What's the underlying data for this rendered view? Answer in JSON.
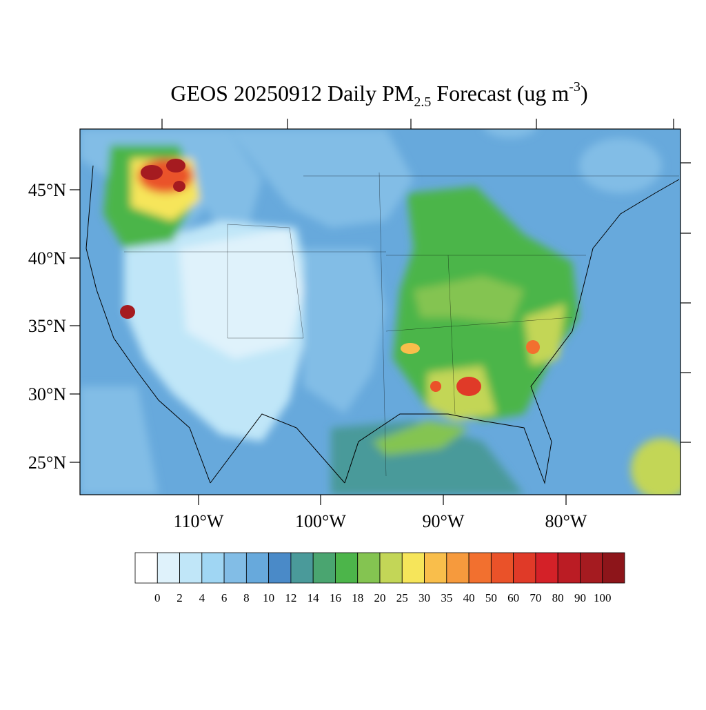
{
  "title": {
    "main": "GEOS 20250912 Daily PM",
    "subscript": "2.5",
    "middle": " Forecast (ug m",
    "superscript": "-3",
    "end": ")"
  },
  "latitude_labels": [
    "45°N",
    "40°N",
    "35°N",
    "30°N",
    "25°N"
  ],
  "longitude_labels": [
    "110°W",
    "100°W",
    "90°W",
    "80°W"
  ],
  "colorbar": {
    "colors": [
      "#ffffff",
      "#dff2fb",
      "#c0e6f8",
      "#a0d6f3",
      "#82bde6",
      "#67a9dc",
      "#4a8ac8",
      "#4a9a9a",
      "#4aa570",
      "#4cb54a",
      "#84c451",
      "#c3d657",
      "#f6e55a",
      "#f9be4b",
      "#f69a3d",
      "#f2702f",
      "#ea5229",
      "#e03a28",
      "#d42128",
      "#bb1c24",
      "#a51b20",
      "#8d151a"
    ],
    "labels": [
      "0",
      "2",
      "4",
      "6",
      "8",
      "10",
      "12",
      "14",
      "16",
      "18",
      "20",
      "25",
      "30",
      "35",
      "40",
      "50",
      "60",
      "70",
      "80",
      "90",
      "100"
    ]
  }
}
